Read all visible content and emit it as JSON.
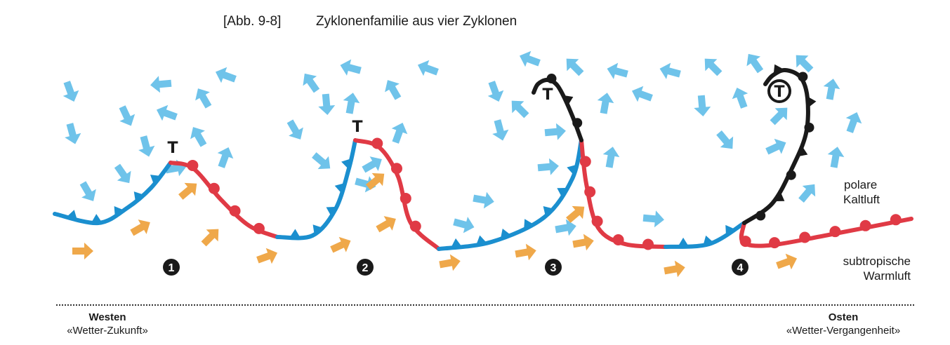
{
  "caption": {
    "reference": "[Abb. 9-8]",
    "title": "Zyklonenfamilie aus vier Zyklonen"
  },
  "labels": {
    "cold_air": [
      "polare",
      "Kaltluft"
    ],
    "warm_air": [
      "subtropische",
      "Warmluft"
    ],
    "low_symbol": "T",
    "west": {
      "title": "Westen",
      "subtitle": "«Wetter-Zukunft»"
    },
    "east": {
      "title": "Osten",
      "subtitle": "«Wetter-Vergangenheit»"
    }
  },
  "cyclones": [
    {
      "number": "1",
      "stage": "wave"
    },
    {
      "number": "2",
      "stage": "open"
    },
    {
      "number": "3",
      "stage": "occluding"
    },
    {
      "number": "4",
      "stage": "occluded"
    }
  ],
  "colors": {
    "cold_front": "#1b8fcf",
    "warm_front": "#e03a45",
    "occlusion": "#1a1a1a",
    "cold_air_arrow": "#6fc3ea",
    "warm_air_arrow": "#efa84a"
  }
}
